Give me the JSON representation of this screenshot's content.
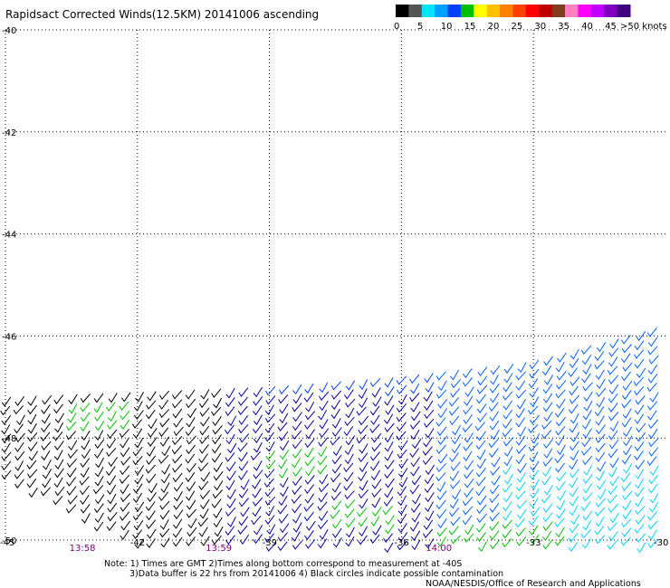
{
  "chart_data": {
    "type": "scatter",
    "title": "Rapidsact Corrected Winds(12.5KM) 20141006 ascending",
    "xlabel": "",
    "ylabel": "",
    "xlim": [
      -45,
      -30
    ],
    "ylim": [
      -50,
      -40
    ],
    "x_ticks": [
      -45,
      -42,
      -39,
      -36,
      -33,
      -30
    ],
    "y_ticks": [
      -40,
      -42,
      -44,
      -46,
      -48,
      -50
    ],
    "x_tick_labels": [
      "-45",
      "-42",
      "-39",
      "-36",
      "-33",
      "-30"
    ],
    "y_tick_labels": [
      "-40",
      "-42",
      "-44",
      "-46",
      "-48",
      "-50"
    ],
    "grid": true,
    "times": [
      {
        "label": "13:58",
        "x": -43.3
      },
      {
        "label": "13:59",
        "x": -40.2
      },
      {
        "label": "14:00",
        "x": -35.2
      }
    ],
    "legend": {
      "placement": "top-right",
      "unit_label": ">50 knots",
      "labels": [
        "0",
        "5",
        "10",
        "15",
        "20",
        "25",
        "30",
        "35",
        "40",
        "45"
      ],
      "colors": [
        "#000000",
        "#555555",
        "#00e5ff",
        "#00a0ff",
        "#0040ff",
        "#00c000",
        "#ffff00",
        "#ffc000",
        "#ff8000",
        "#ff4000",
        "#ff0000",
        "#c00000",
        "#804020",
        "#ff80c0",
        "#ff00ff",
        "#c000ff",
        "#8000c0",
        "#400080"
      ]
    },
    "notes": [
      "Note: 1) Times are GMT 2)Times along bottom correspond to measurement at -40S",
      "3)Data buffer is 22 hrs from 20141006 4) Black circles indicate possible contamination",
      "NOAA/NESDIS/Office of Research and Applications"
    ],
    "wind_swath": {
      "north_edge": [
        [
          -45,
          -47.2
        ],
        [
          -39,
          -47.0
        ],
        [
          -36,
          -46.8
        ],
        [
          -33,
          -46.5
        ],
        [
          -30,
          -45.8
        ]
      ],
      "south_edge": -50.2,
      "west_diagonal": [
        [
          -45,
          -48.7
        ],
        [
          -42,
          -50.0
        ]
      ],
      "direction_deg": 235,
      "speed_zones": [
        {
          "speed_knots": 5,
          "color": "#000000",
          "lon_min": -45,
          "lon_max": -40,
          "lat_min": -50.2,
          "lat_max": -47.0
        },
        {
          "speed_knots": 10,
          "color": "#0000a0",
          "lon_min": -40,
          "lon_max": -35,
          "lat_min": -50.2,
          "lat_max": -47.0
        },
        {
          "speed_knots": 10,
          "color": "#0060ff",
          "lon_min": -35,
          "lon_max": -30,
          "lat_min": -50.2,
          "lat_max": -45.8
        },
        {
          "speed_knots": 8,
          "color": "#00d0ff",
          "lon_min": -33.5,
          "lon_max": -30,
          "lat_min": -50.2,
          "lat_max": -48.5
        },
        {
          "speed_knots": 15,
          "color": "#00c000",
          "lon_min": -43.5,
          "lon_max": -42,
          "lat_min": -47.8,
          "lat_max": -47.2
        },
        {
          "speed_knots": 15,
          "color": "#00c000",
          "lon_min": -39,
          "lon_max": -37.5,
          "lat_min": -48.6,
          "lat_max": -48.1
        },
        {
          "speed_knots": 15,
          "color": "#00c000",
          "lon_min": -37.5,
          "lon_max": -36,
          "lat_min": -49.7,
          "lat_max": -49.2
        },
        {
          "speed_knots": 15,
          "color": "#00c000",
          "lon_min": -35,
          "lon_max": -32,
          "lat_min": -50.1,
          "lat_max": -49.6
        }
      ]
    }
  }
}
